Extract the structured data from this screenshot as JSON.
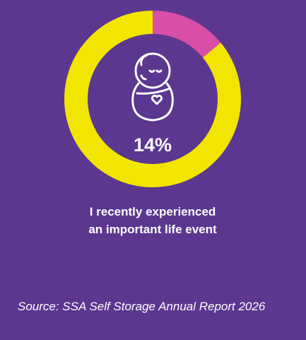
{
  "chart_data": {
    "type": "pie",
    "donut": true,
    "values": [
      14,
      86
    ],
    "colors": [
      "#d94fa7",
      "#f2e500"
    ],
    "value_labels": [
      "14%",
      null
    ],
    "caption": "I recently experienced an important life event",
    "source": "Source: SSA Self Storage Annual Report 2026"
  }
}
